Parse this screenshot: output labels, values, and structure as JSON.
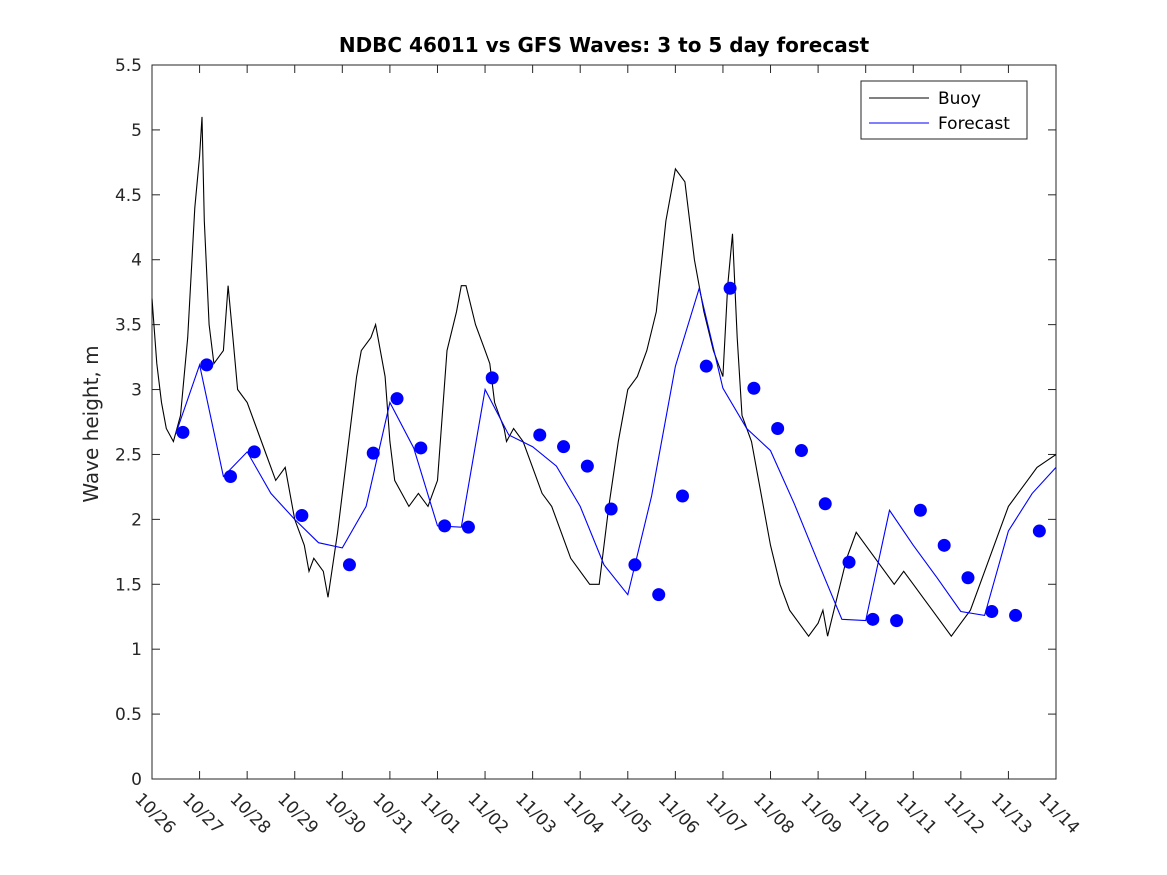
{
  "chart_data": {
    "type": "line",
    "title": "NDBC 46011 vs GFS Waves: 3 to 5 day forecast",
    "xlabel": "",
    "ylabel": "Wave height, m",
    "xlim": [
      0,
      19
    ],
    "ylim": [
      0,
      5.5
    ],
    "yticks": [
      0,
      0.5,
      1,
      1.5,
      2,
      2.5,
      3,
      3.5,
      4,
      4.5,
      5,
      5.5
    ],
    "ytick_labels": [
      "0",
      "0.5",
      "1",
      "1.5",
      "2",
      "2.5",
      "3",
      "3.5",
      "4",
      "4.5",
      "5",
      "5.5"
    ],
    "xtick_labels": [
      "10/26",
      "10/27",
      "10/28",
      "10/29",
      "10/30",
      "10/31",
      "11/01",
      "11/02",
      "11/03",
      "11/04",
      "11/05",
      "11/06",
      "11/07",
      "11/08",
      "11/09",
      "11/10",
      "11/11",
      "11/12",
      "11/13",
      "11/14"
    ],
    "grid": false,
    "legend": {
      "position": "top-right",
      "entries": [
        "Buoy",
        "Forecast"
      ]
    },
    "colors": {
      "buoy": "#000000",
      "forecast": "#0000ff",
      "markers": "#0000ff"
    },
    "series": [
      {
        "name": "Buoy",
        "x": [
          0,
          0.1,
          0.2,
          0.3,
          0.45,
          0.6,
          0.75,
          0.9,
          1.0,
          1.05,
          1.1,
          1.2,
          1.3,
          1.5,
          1.6,
          1.7,
          1.8,
          2.0,
          2.2,
          2.4,
          2.6,
          2.8,
          3.0,
          3.1,
          3.2,
          3.3,
          3.4,
          3.6,
          3.7,
          3.9,
          4.1,
          4.3,
          4.4,
          4.6,
          4.7,
          4.9,
          5.0,
          5.1,
          5.25,
          5.4,
          5.6,
          5.8,
          5.9,
          6.0,
          6.2,
          6.4,
          6.5,
          6.6,
          6.8,
          7.0,
          7.1,
          7.2,
          7.3,
          7.4,
          7.45,
          7.6,
          7.8,
          8.0,
          8.2,
          8.4,
          8.6,
          8.8,
          9.0,
          9.2,
          9.4,
          9.6,
          9.8,
          10.0,
          10.2,
          10.4,
          10.6,
          10.8,
          11.0,
          11.2,
          11.4,
          11.6,
          11.8,
          12.0,
          12.1,
          12.2,
          12.3,
          12.4,
          12.6,
          12.8,
          13.0,
          13.2,
          13.4,
          13.6,
          13.8,
          14.0,
          14.1,
          14.2,
          14.4,
          14.6,
          14.8,
          15.0,
          15.2,
          15.4,
          15.6,
          15.8,
          16.0,
          16.2,
          16.4,
          16.6,
          16.8,
          17.0,
          17.2,
          17.4,
          17.6,
          17.8,
          18.0,
          18.2,
          18.4,
          18.6,
          18.8,
          19.0
        ],
        "values": [
          3.7,
          3.2,
          2.9,
          2.7,
          2.6,
          2.8,
          3.4,
          4.4,
          4.8,
          5.1,
          4.3,
          3.5,
          3.2,
          3.3,
          3.8,
          3.4,
          3.0,
          2.9,
          2.7,
          2.5,
          2.3,
          2.4,
          2.0,
          1.9,
          1.8,
          1.6,
          1.7,
          1.6,
          1.4,
          1.9,
          2.5,
          3.1,
          3.3,
          3.4,
          3.5,
          3.1,
          2.6,
          2.3,
          2.2,
          2.1,
          2.2,
          2.1,
          2.2,
          2.3,
          3.3,
          3.6,
          3.8,
          3.8,
          3.5,
          3.3,
          3.2,
          2.9,
          2.8,
          2.7,
          2.6,
          2.7,
          2.6,
          2.4,
          2.2,
          2.1,
          1.9,
          1.7,
          1.6,
          1.5,
          1.5,
          2.1,
          2.6,
          3.0,
          3.1,
          3.3,
          3.6,
          4.3,
          4.7,
          4.6,
          4.0,
          3.6,
          3.3,
          3.1,
          3.8,
          4.2,
          3.4,
          2.8,
          2.6,
          2.2,
          1.8,
          1.5,
          1.3,
          1.2,
          1.1,
          1.2,
          1.3,
          1.1,
          1.4,
          1.7,
          1.9,
          1.8,
          1.7,
          1.6,
          1.5,
          1.6,
          1.5,
          1.4,
          1.3,
          1.2,
          1.1,
          1.2,
          1.3,
          1.5,
          1.7,
          1.9,
          2.1,
          2.2,
          2.3,
          2.4,
          2.45,
          2.5
        ]
      },
      {
        "name": "Forecast",
        "x": [
          0.5,
          1.0,
          1.5,
          2.0,
          2.5,
          3.0,
          3.5,
          4.0,
          4.5,
          5.0,
          5.5,
          6.0,
          6.5,
          7.0,
          7.5,
          8.0,
          8.5,
          9.0,
          9.5,
          10.0,
          10.5,
          11.0,
          11.5,
          12.0,
          12.5,
          13.0,
          13.5,
          14.0,
          14.5,
          15.0,
          15.5,
          16.0,
          16.5,
          17.0,
          17.5,
          18.0,
          18.5,
          19.0
        ],
        "values": [
          2.66,
          3.19,
          2.33,
          2.52,
          2.2,
          2.0,
          1.82,
          1.78,
          2.1,
          2.9,
          2.55,
          1.95,
          1.94,
          3.0,
          2.65,
          2.56,
          2.41,
          2.1,
          1.65,
          1.42,
          2.18,
          3.18,
          3.78,
          3.01,
          2.7,
          2.53,
          2.12,
          1.67,
          1.23,
          1.22,
          2.07,
          1.8,
          1.55,
          1.29,
          1.26,
          1.91,
          2.2,
          2.4
        ]
      }
    ],
    "markers": {
      "name": "Forecast points",
      "x": [
        0.65,
        1.15,
        1.65,
        2.15,
        3.15,
        4.15,
        4.65,
        5.15,
        5.65,
        6.15,
        6.65,
        7.15,
        8.15,
        8.65,
        9.15,
        9.65,
        10.15,
        10.65,
        11.15,
        11.65,
        12.15,
        12.65,
        13.15,
        13.65,
        14.15,
        14.65,
        15.15,
        15.65,
        16.15,
        16.65,
        17.15,
        17.65,
        18.15,
        18.65
      ],
      "values": [
        2.67,
        3.19,
        2.33,
        2.52,
        2.03,
        1.65,
        2.51,
        2.93,
        2.55,
        1.95,
        1.94,
        3.09,
        2.65,
        2.56,
        2.41,
        2.08,
        1.65,
        1.42,
        2.18,
        3.18,
        3.78,
        3.01,
        2.7,
        2.53,
        2.12,
        1.67,
        1.23,
        1.22,
        2.07,
        1.8,
        1.55,
        1.29,
        1.26,
        1.91
      ]
    }
  }
}
